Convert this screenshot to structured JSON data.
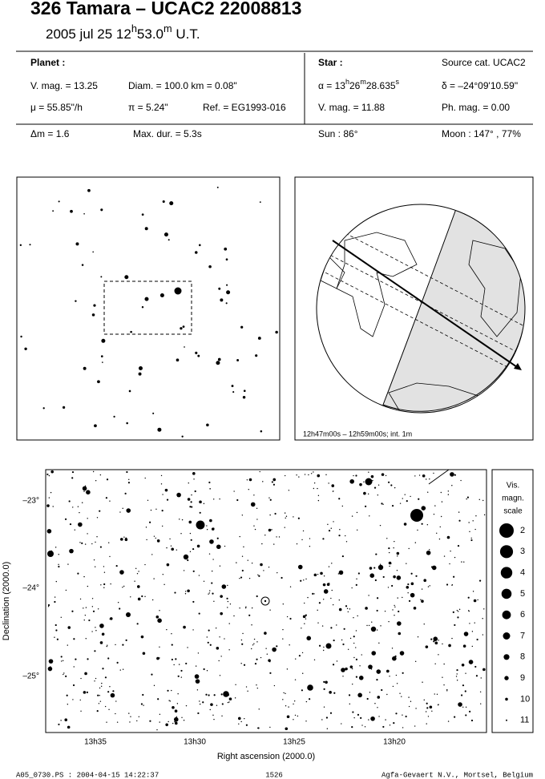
{
  "header": {
    "title": "326 Tamara  –  UCAC2 22008813",
    "date": [
      {
        "text": "2005 jul 25  12"
      },
      {
        "text": "h",
        "sup": true
      },
      {
        "text": "53.0"
      },
      {
        "text": "m",
        "sup": true
      },
      {
        "text": " U.T."
      }
    ]
  },
  "planet": {
    "label": "Planet :",
    "vmag": "V. mag. = 13.25",
    "diam": "Diam. = 100.0 km = 0.08\"",
    "mu": "μ =  55.85\"/h",
    "parallax": "π =  5.24\"",
    "ref": "Ref. = EG1993-016",
    "dm": "Δm = 1.6",
    "maxdur": "Max. dur. = 5.3s"
  },
  "star": {
    "label": "Star :",
    "source": "Source cat.  UCAC2",
    "ra": [
      {
        "text": "α = 13"
      },
      {
        "text": "h",
        "sup": true
      },
      {
        "text": "26"
      },
      {
        "text": "m",
        "sup": true
      },
      {
        "text": "28.635"
      },
      {
        "text": "s",
        "sup": true
      }
    ],
    "dec": "δ = –24°09'10.59\"",
    "vmag": "V. mag. = 11.88",
    "phmag": "Ph. mag. =  0.00",
    "sun": "Sun :  86°",
    "moon": "Moon : 147° , 77%"
  },
  "globe": {
    "caption": "12h47m00s – 12h59m00s; int.  1m"
  },
  "chart": {
    "yticks": [
      "–23°",
      "–24°",
      "–25°"
    ],
    "xticks": [
      "13h35",
      "13h30",
      "13h25",
      "13h20"
    ],
    "xlabel": "Right ascension (2000.0)",
    "ylabel": "Declination (2000.0)",
    "legend": {
      "title": [
        "Vis.",
        "magn.",
        "scale"
      ],
      "mags": [
        "2",
        "3",
        "4",
        "5",
        "6",
        "7",
        "8",
        "9",
        "10",
        "11"
      ]
    }
  },
  "footer": {
    "file": "A05_0730.PS : 2004-04-15 14:22:37",
    "page": "1526",
    "credit": "Agfa-Gevaert N.V., Mortsel, Belgium"
  }
}
